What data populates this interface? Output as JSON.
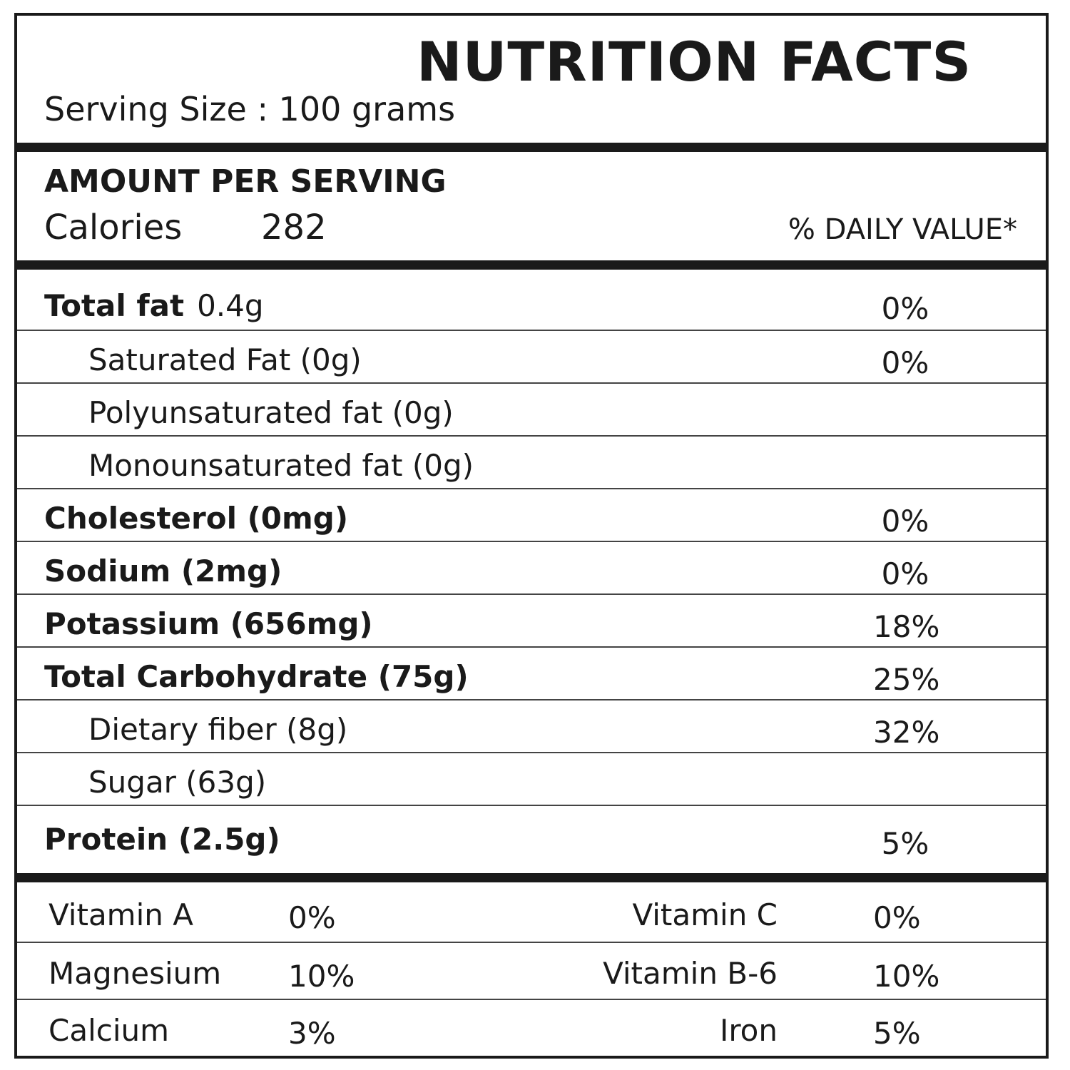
{
  "header": {
    "title": "NUTRITION FACTS",
    "serving_size": "Serving Size : 100 grams"
  },
  "amount": {
    "title": "AMOUNT PER SERVING",
    "calories_label": "Calories",
    "calories_value": "282",
    "daily_value_header": "% DAILY VALUE*"
  },
  "nutrients": [
    {
      "name": "Total fat",
      "amount": "0.4g",
      "percent": "0%"
    },
    {
      "name": "Saturated Fat (0g)",
      "percent": "0%"
    },
    {
      "name": "Polyunsaturated fat (0g)",
      "percent": ""
    },
    {
      "name": "Monounsaturated fat (0g)",
      "percent": ""
    },
    {
      "name": "Cholesterol (0mg)",
      "percent": "0%"
    },
    {
      "name": "Sodium (2mg)",
      "percent": "0%"
    },
    {
      "name": "Potassium (656mg)",
      "percent": "18%"
    },
    {
      "name": "Total Carbohydrate (75g)",
      "percent": "25%"
    },
    {
      "name": "Dietary fiber (8g)",
      "percent": "32%"
    },
    {
      "name": "Sugar (63g)",
      "percent": ""
    },
    {
      "name": "Protein (2.5g)",
      "percent": "5%"
    }
  ],
  "vitamins": [
    {
      "left_name": "Vitamin A",
      "left_percent": "0%",
      "right_name": "Vitamin C",
      "right_percent": "0%"
    },
    {
      "left_name": "Magnesium",
      "left_percent": "10%",
      "right_name": "Vitamin B-6",
      "right_percent": "10%"
    },
    {
      "left_name": "Calcium",
      "left_percent": "3%",
      "right_name": "Iron",
      "right_percent": "5%"
    }
  ]
}
